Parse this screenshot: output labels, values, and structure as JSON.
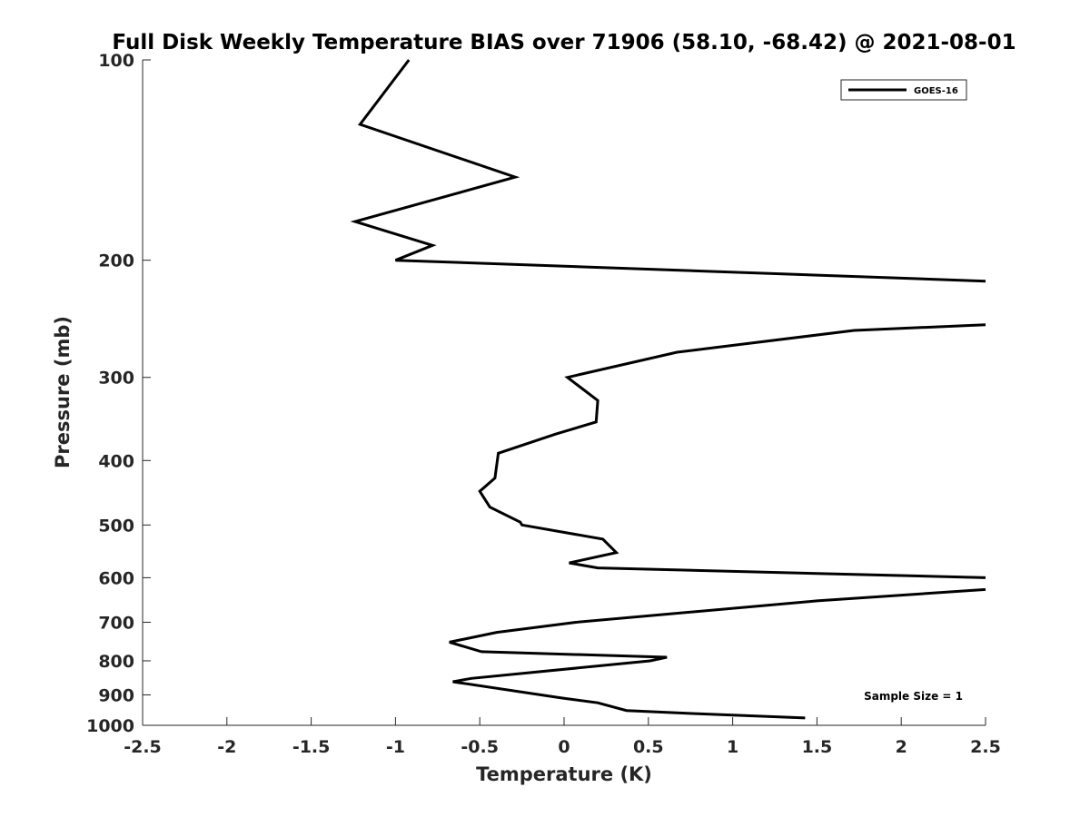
{
  "chart_data": {
    "type": "line",
    "title": "Full Disk Weekly Temperature BIAS over 71906 (58.10, -68.42) @ 2021-08-01",
    "xlabel": "Temperature (K)",
    "ylabel": "Pressure (mb)",
    "xlim": [
      -2.5,
      2.5
    ],
    "ylim": [
      1000,
      100
    ],
    "y_scale": "log",
    "y_reversed": true,
    "grid": false,
    "legend": {
      "position": "top-right",
      "entries": [
        "GOES-16"
      ]
    },
    "x_ticks": [
      "-2.5",
      "-2",
      "-1.5",
      "-1",
      "-0.5",
      "0",
      "0.5",
      "1",
      "1.5",
      "2",
      "2.5"
    ],
    "y_ticks": [
      "100",
      "200",
      "300",
      "400",
      "500",
      "600",
      "700",
      "800",
      "900",
      "1000"
    ],
    "series": [
      {
        "name": "GOES-16",
        "color": "#000000",
        "points": [
          {
            "x": -0.92,
            "y": 100
          },
          {
            "x": -1.21,
            "y": 125
          },
          {
            "x": -0.29,
            "y": 150
          },
          {
            "x": -1.24,
            "y": 175
          },
          {
            "x": -0.78,
            "y": 190
          },
          {
            "x": -1.0,
            "y": 200
          },
          {
            "x": 2.5,
            "y": 215
          },
          {
            "x": null,
            "y": null
          },
          {
            "x": 2.5,
            "y": 250
          },
          {
            "x": 1.72,
            "y": 255
          },
          {
            "x": 0.67,
            "y": 275
          },
          {
            "x": 0.02,
            "y": 300
          },
          {
            "x": 0.2,
            "y": 325
          },
          {
            "x": 0.19,
            "y": 350
          },
          {
            "x": -0.05,
            "y": 365
          },
          {
            "x": -0.39,
            "y": 390
          },
          {
            "x": -0.41,
            "y": 425
          },
          {
            "x": -0.5,
            "y": 445
          },
          {
            "x": -0.44,
            "y": 470
          },
          {
            "x": -0.26,
            "y": 495
          },
          {
            "x": -0.25,
            "y": 500
          },
          {
            "x": 0.23,
            "y": 525
          },
          {
            "x": 0.31,
            "y": 550
          },
          {
            "x": 0.03,
            "y": 570
          },
          {
            "x": 0.2,
            "y": 580
          },
          {
            "x": 2.5,
            "y": 600
          },
          {
            "x": null,
            "y": null
          },
          {
            "x": 2.5,
            "y": 625
          },
          {
            "x": 1.5,
            "y": 650
          },
          {
            "x": 0.07,
            "y": 700
          },
          {
            "x": -0.4,
            "y": 725
          },
          {
            "x": -0.68,
            "y": 750
          },
          {
            "x": -0.49,
            "y": 775
          },
          {
            "x": 0.61,
            "y": 790
          },
          {
            "x": 0.51,
            "y": 800
          },
          {
            "x": -0.55,
            "y": 850
          },
          {
            "x": -0.66,
            "y": 860
          },
          {
            "x": -0.01,
            "y": 910
          },
          {
            "x": 0.2,
            "y": 925
          },
          {
            "x": 0.37,
            "y": 950
          },
          {
            "x": 0.76,
            "y": 960
          },
          {
            "x": 1.43,
            "y": 975
          }
        ]
      }
    ],
    "annotations": [
      {
        "text": "Sample Size = 1",
        "position": "bottom-right"
      }
    ]
  }
}
